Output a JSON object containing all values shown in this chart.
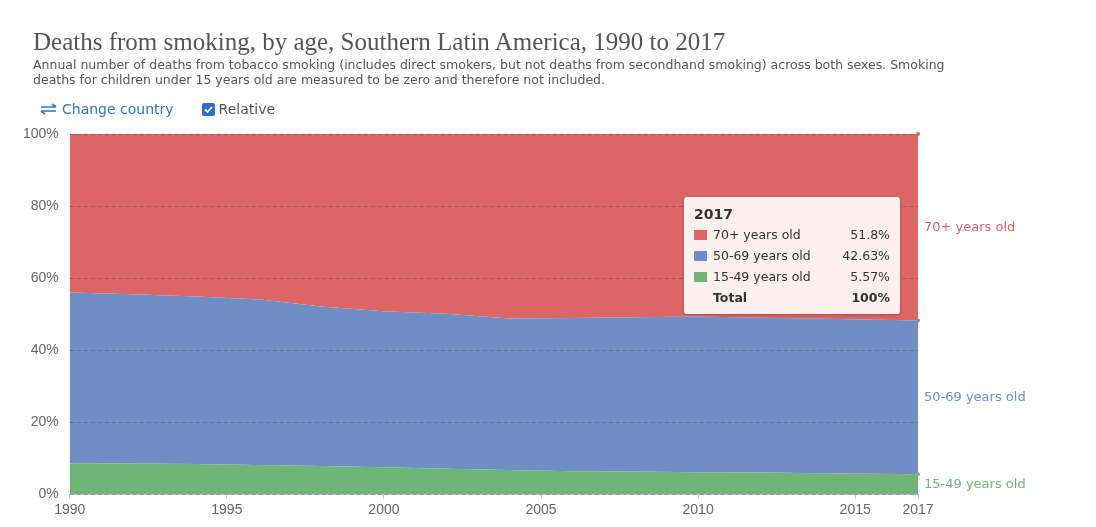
{
  "chart_data": {
    "type": "area",
    "stacked": true,
    "title": "Deaths from smoking, by age, Southern Latin America, 1990 to 2017",
    "subtitle": "Annual number of deaths from tobacco smoking (includes direct smokers, but not deaths from secondhand smoking) across both sexes. Smoking deaths for children under 15 years old are measured to be zero and therefore not included.",
    "x": [
      1990,
      1992,
      1994,
      1996,
      1998,
      2000,
      2002,
      2004,
      2006,
      2008,
      2010,
      2012,
      2014,
      2017
    ],
    "series": [
      {
        "name": "15-49 years old",
        "color": "#70b577",
        "values": [
          8.6,
          8.5,
          8.4,
          8.1,
          7.8,
          7.5,
          7.1,
          6.7,
          6.4,
          6.3,
          6.1,
          6.0,
          5.8,
          5.57
        ]
      },
      {
        "name": "50-69 years old",
        "color": "#6f8ec3",
        "values": [
          47.4,
          47.0,
          46.5,
          46.0,
          44.3,
          43.3,
          43.0,
          42.1,
          42.5,
          42.8,
          43.2,
          43.0,
          42.9,
          42.63
        ]
      },
      {
        "name": "70+ years old",
        "color": "#dc6566",
        "values": [
          44.0,
          44.5,
          45.1,
          45.9,
          47.9,
          49.2,
          49.9,
          51.2,
          51.1,
          50.9,
          50.7,
          51.0,
          51.3,
          51.8
        ]
      }
    ],
    "xlim": [
      1990,
      2017
    ],
    "xticks": [
      1990,
      1995,
      2000,
      2005,
      2010,
      2015,
      2017
    ],
    "ylim": [
      0,
      100
    ],
    "yticks": [
      {
        "value": 0,
        "label": "0%"
      },
      {
        "value": 20,
        "label": "20%"
      },
      {
        "value": 40,
        "label": "40%"
      },
      {
        "value": 60,
        "label": "60%"
      },
      {
        "value": 80,
        "label": "80%"
      },
      {
        "value": 100,
        "label": "100%"
      }
    ],
    "grid": "y",
    "legend": "right",
    "annotations": [
      "Change country",
      "Relative",
      "2017",
      "51.8%",
      "42.63%",
      "5.57%",
      "Total",
      "100%"
    ]
  }
}
